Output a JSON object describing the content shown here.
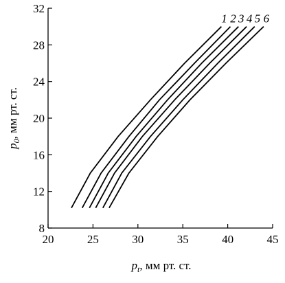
{
  "chart_data": {
    "type": "line",
    "xlabel": {
      "symbol": "p",
      "subscript": "t",
      "unit": ", мм рт. ст."
    },
    "ylabel": {
      "symbol": "p",
      "subscript": "0",
      "unit": ", мм рт. ст."
    },
    "xlim": [
      20,
      45
    ],
    "xticks": [
      20,
      25,
      30,
      35,
      40,
      45
    ],
    "ylim": [
      8,
      32
    ],
    "yticks": [
      8,
      12,
      16,
      20,
      24,
      28,
      32
    ],
    "color": "#000000",
    "series": [
      {
        "name": "1",
        "x": [
          22.6,
          24.7,
          27.8,
          31.4,
          35.2,
          39.3
        ],
        "values": [
          10.2,
          14,
          18,
          22,
          26,
          30
        ]
      },
      {
        "name": "2",
        "x": [
          23.8,
          25.9,
          29.0,
          32.4,
          36.3,
          40.3
        ],
        "values": [
          10.2,
          14,
          18,
          22,
          26,
          30
        ]
      },
      {
        "name": "3",
        "x": [
          24.6,
          26.7,
          29.8,
          33.3,
          37.1,
          41.2
        ],
        "values": [
          10.2,
          14,
          18,
          22,
          26,
          30
        ]
      },
      {
        "name": "4",
        "x": [
          25.3,
          27.4,
          30.5,
          34.1,
          38.0,
          42.1
        ],
        "values": [
          10.2,
          14,
          18,
          22,
          26,
          30
        ]
      },
      {
        "name": "5",
        "x": [
          26.1,
          28.2,
          31.4,
          35.0,
          38.9,
          43.0
        ],
        "values": [
          10.2,
          14,
          18,
          22,
          26,
          30
        ]
      },
      {
        "name": "6",
        "x": [
          26.8,
          29.0,
          32.2,
          35.8,
          39.8,
          44.0
        ],
        "values": [
          10.2,
          14,
          18,
          22,
          26,
          30
        ]
      }
    ]
  }
}
